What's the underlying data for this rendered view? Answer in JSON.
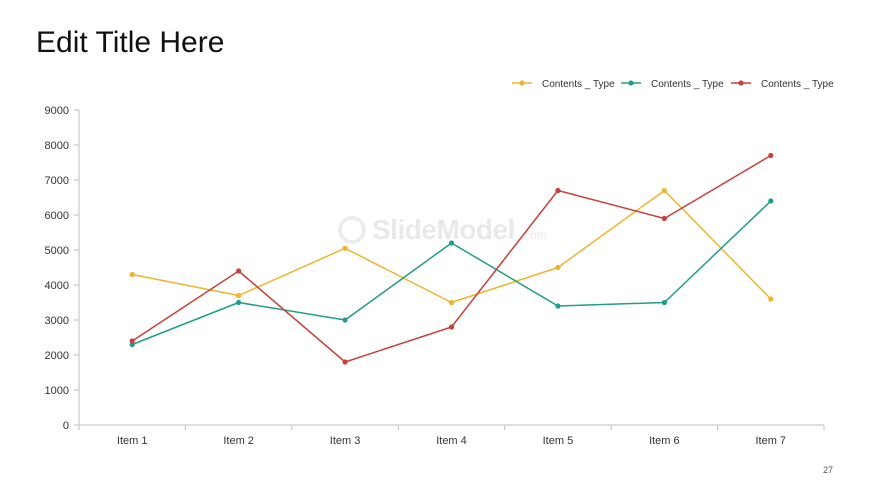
{
  "slide": {
    "title": "Edit Title Here",
    "page_number": "27",
    "watermark": "SlideModel",
    "watermark_suffix": ".com"
  },
  "chart_data": {
    "type": "line",
    "title": "",
    "xlabel": "",
    "ylabel": "",
    "categories": [
      "Item 1",
      "Item 2",
      "Item 3",
      "Item 4",
      "Item 5",
      "Item 6",
      "Item 7"
    ],
    "ylim": [
      0,
      9000
    ],
    "yticks": [
      0,
      1000,
      2000,
      3000,
      4000,
      5000,
      6000,
      7000,
      8000,
      9000
    ],
    "grid": false,
    "legend_position": "top-right",
    "series": [
      {
        "name": "Contents _ Type",
        "color": "#F0B42D",
        "values": [
          4300,
          3700,
          5050,
          3500,
          4500,
          6700,
          3600
        ]
      },
      {
        "name": "Contents _ Type",
        "color": "#1E9E8A",
        "values": [
          2300,
          3500,
          3000,
          5200,
          3400,
          3500,
          6400
        ]
      },
      {
        "name": "Contents _ Type",
        "color": "#C8413A",
        "values": [
          2400,
          4400,
          1800,
          2800,
          6700,
          5900,
          7700
        ]
      }
    ]
  }
}
